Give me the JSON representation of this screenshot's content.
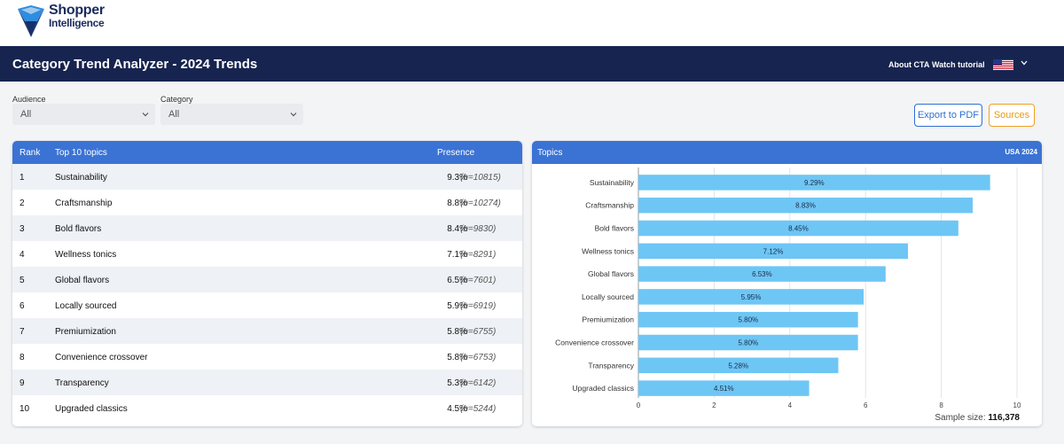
{
  "brand": {
    "line1": "Shopper",
    "line2": "Intelligence",
    "colors": {
      "dark": "#1a2b5e",
      "accent": "#2f8ce0",
      "light": "#9ec9ee"
    }
  },
  "header": {
    "title": "Category Trend Analyzer - 2024 Trends",
    "links": [
      "About CTA",
      "Watch tutorial"
    ],
    "flag_icon": "usa-flag-icon",
    "menu_icon": "chevron-down-icon"
  },
  "filters": [
    {
      "label": "Audience",
      "value": "All"
    },
    {
      "label": "Category",
      "value": "All"
    }
  ],
  "actions": {
    "export": "Export to PDF",
    "sources": "Sources"
  },
  "table": {
    "headers": {
      "rank": "Rank",
      "topic": "Top 10 topics",
      "presence": "Presence"
    },
    "rows": [
      {
        "rank": "1",
        "topic": "Sustainability",
        "presence": "9.3%",
        "n": "(n=10815)"
      },
      {
        "rank": "2",
        "topic": "Craftsmanship",
        "presence": "8.8%",
        "n": "(n=10274)"
      },
      {
        "rank": "3",
        "topic": "Bold flavors",
        "presence": "8.4%",
        "n": "(n=9830)"
      },
      {
        "rank": "4",
        "topic": "Wellness tonics",
        "presence": "7.1%",
        "n": "(n=8291)"
      },
      {
        "rank": "5",
        "topic": "Global flavors",
        "presence": "6.5%",
        "n": "(n=7601)"
      },
      {
        "rank": "6",
        "topic": "Locally sourced",
        "presence": "5.9%",
        "n": "(n=6919)"
      },
      {
        "rank": "7",
        "topic": "Premiumization",
        "presence": "5.8%",
        "n": "(n=6755)"
      },
      {
        "rank": "8",
        "topic": "Convenience crossover",
        "presence": "5.8%",
        "n": "(n=6753)"
      },
      {
        "rank": "9",
        "topic": "Transparency",
        "presence": "5.3%",
        "n": "(n=6142)"
      },
      {
        "rank": "10",
        "topic": "Upgraded classics",
        "presence": "4.5%",
        "n": "(n=5244)"
      }
    ]
  },
  "chart_panel": {
    "title": "Topics",
    "region": "USA 2024",
    "sample_label": "Sample size:",
    "sample_value": "116,378"
  },
  "chart_data": {
    "type": "bar",
    "orientation": "horizontal",
    "title": "Topics",
    "categories": [
      "Sustainability",
      "Craftsmanship",
      "Bold flavors",
      "Wellness tonics",
      "Global flavors",
      "Locally sourced",
      "Premiumization",
      "Convenience crossover",
      "Transparency",
      "Upgraded classics"
    ],
    "values": [
      9.29,
      8.83,
      8.45,
      7.12,
      6.53,
      5.95,
      5.8,
      5.8,
      5.28,
      4.51
    ],
    "labels": [
      "9.29%",
      "8.83%",
      "8.45%",
      "7.12%",
      "6.53%",
      "5.95%",
      "5.80%",
      "5.80%",
      "5.28%",
      "4.51%"
    ],
    "xlim": [
      0,
      10
    ],
    "xticks": [
      "0",
      "2",
      "4",
      "6",
      "8",
      "10"
    ],
    "grid": true,
    "bar_color": "#6ec6f5"
  }
}
